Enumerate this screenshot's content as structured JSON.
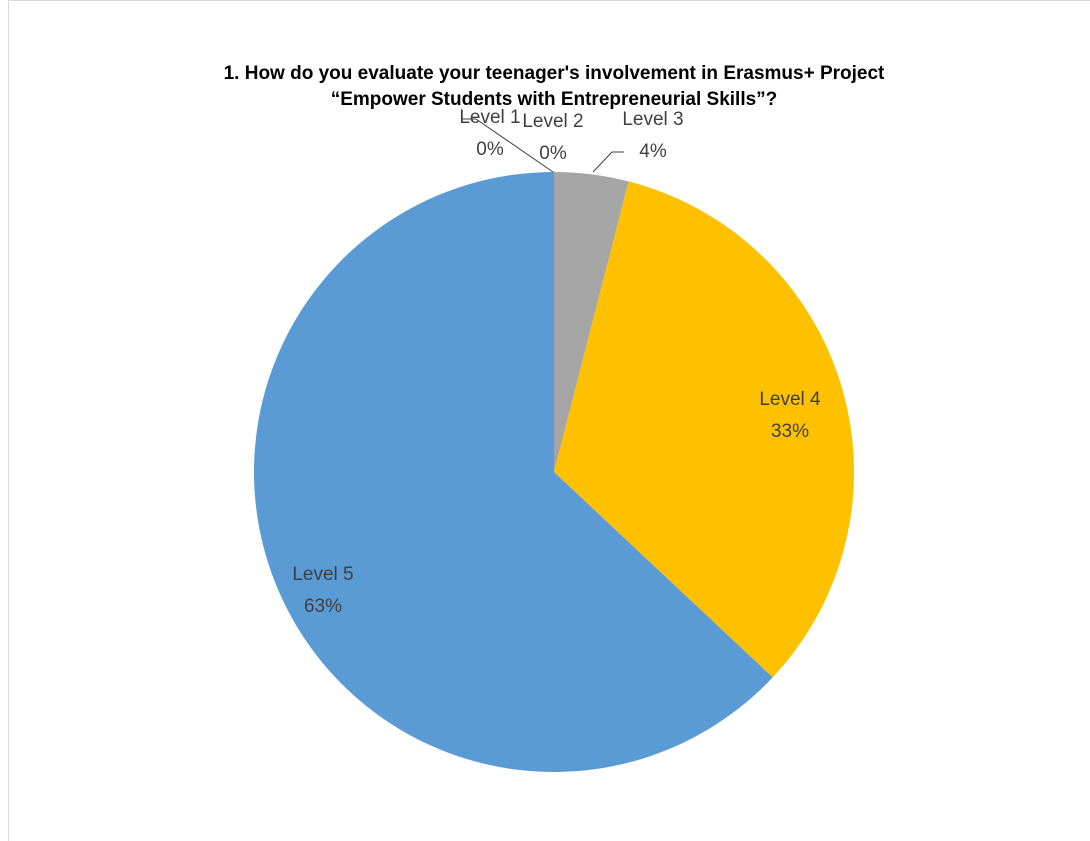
{
  "chart_data": {
    "type": "pie",
    "title": [
      "1. How do you evaluate your teenager's involvement in Erasmus+ Project",
      "“Empower Students with Entrepreneurial Skills”?"
    ],
    "categories": [
      "Level 1",
      "Level 2",
      "Level 3",
      "Level 4",
      "Level 5"
    ],
    "values": [
      0,
      0,
      4,
      33,
      63
    ],
    "value_labels": [
      "0%",
      "0%",
      "4%",
      "33%",
      "63%"
    ],
    "colors": [
      "#4472c4",
      "#ed7d31",
      "#a5a5a5",
      "#ffc000",
      "#5b9bd5"
    ]
  }
}
